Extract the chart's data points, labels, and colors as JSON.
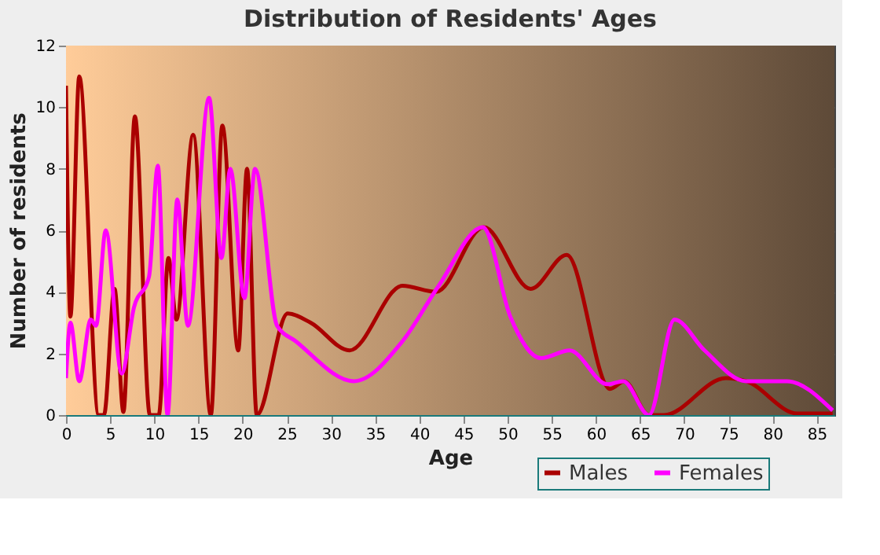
{
  "chart_data": {
    "type": "line",
    "title": "Distribution of Residents' Ages",
    "xlabel": "Age",
    "ylabel": "Number of residents",
    "xlim": [
      0,
      87
    ],
    "xticks": [
      0,
      5,
      10,
      15,
      20,
      25,
      30,
      35,
      40,
      45,
      50,
      55,
      60,
      65,
      70,
      75,
      80,
      85
    ],
    "ylim": [
      0,
      12
    ],
    "yticks": [
      0,
      2,
      4,
      6,
      8,
      10,
      12
    ],
    "grid": true,
    "legend": "bottom",
    "line_style": "solid",
    "marker": "none",
    "series": [
      {
        "name": "Males",
        "color": "#aa0000",
        "x": [
          0,
          0.5,
          1.5,
          3.7,
          4.3,
          5.5,
          6.5,
          7.8,
          9.5,
          10.5,
          11.6,
          12.5,
          14.4,
          16.4,
          17.7,
          19.5,
          20.5,
          21.6,
          25.1,
          27.7,
          32.1,
          38.1,
          41.9,
          47.3,
          52.6,
          56.7,
          61.6,
          63.2,
          66,
          67.7,
          74.7,
          77,
          82.8,
          86.8
        ],
        "values": [
          10.7,
          3.2,
          11,
          0,
          0,
          4.1,
          0.1,
          9.7,
          0,
          0,
          5.1,
          3.1,
          9.1,
          0,
          9.4,
          2.1,
          8,
          0,
          3.3,
          3,
          2.1,
          4.2,
          4,
          6.1,
          4.1,
          5.2,
          0.85,
          1.1,
          0,
          0,
          1.2,
          1.1,
          0.05,
          0.05
        ]
      },
      {
        "name": "Females",
        "color": "#ff00ff",
        "x": [
          0,
          0.5,
          1.5,
          2.8,
          3.4,
          4.5,
          6.3,
          7.7,
          9.4,
          10.4,
          11.5,
          12.6,
          13.8,
          16.2,
          17.6,
          18.6,
          20.2,
          21.4,
          23.9,
          26,
          32.6,
          38.1,
          42.2,
          47.2,
          50.3,
          53.8,
          57,
          61.3,
          63.1,
          66,
          68.9,
          72.3,
          77,
          81.6,
          86.8
        ],
        "values": [
          1.2,
          3,
          1.1,
          3.1,
          2.9,
          6,
          1.35,
          3.5,
          4.5,
          8.1,
          0,
          7,
          2.9,
          10.3,
          5.1,
          8,
          3.8,
          8,
          2.9,
          2.4,
          1.1,
          2.4,
          4.2,
          6.1,
          3.2,
          1.85,
          2.1,
          1,
          1.1,
          0,
          3.1,
          2.1,
          1.1,
          1.1,
          0.15
        ]
      }
    ]
  }
}
